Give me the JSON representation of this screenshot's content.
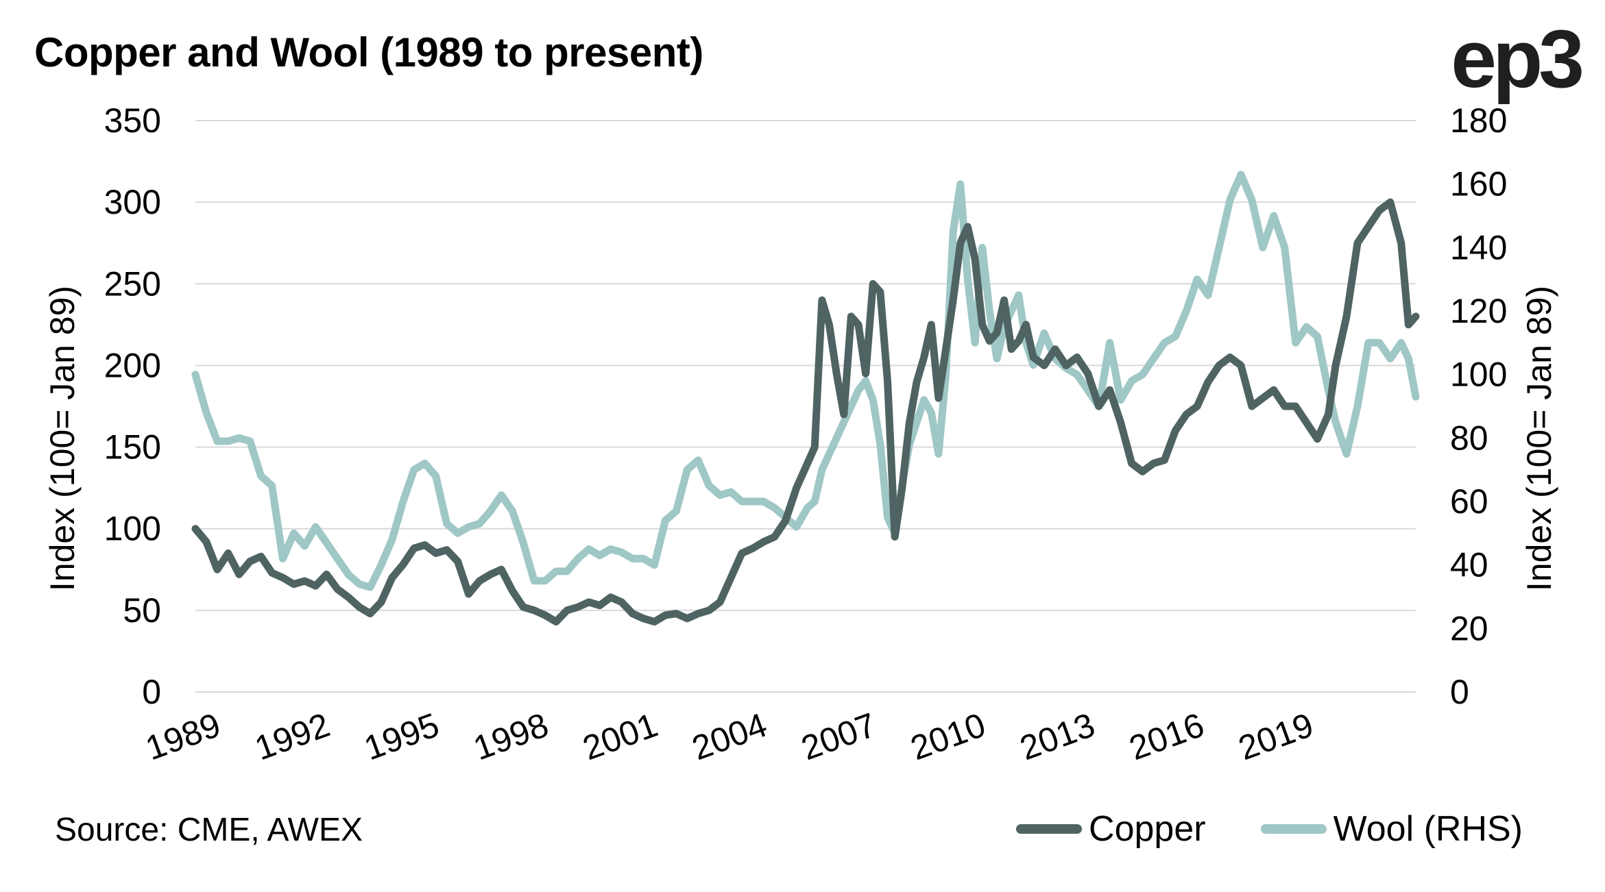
{
  "title": "Copper and Wool (1989 to present)",
  "logo": "ep3",
  "source": "Source: CME, AWEX",
  "colors": {
    "copper": "#4f6362",
    "wool": "#9ec7c5",
    "grid": "#d9d9d9"
  },
  "chart_data": {
    "type": "line",
    "title": "Copper and Wool (1989 to present)",
    "ylabel_left": "Index (100= Jan 89)",
    "ylabel_right": "Index (100= Jan 89)",
    "ylim_left": [
      0,
      350
    ],
    "ylim_right": [
      0,
      180
    ],
    "yticks_left": [
      "0",
      "50",
      "100",
      "150",
      "200",
      "250",
      "300",
      "350"
    ],
    "yticks_right": [
      "0",
      "20",
      "40",
      "60",
      "80",
      "100",
      "120",
      "140",
      "160",
      "180"
    ],
    "xlim": [
      1989,
      2022.5
    ],
    "xticks": [
      "1989",
      "1992",
      "1995",
      "1998",
      "2001",
      "2004",
      "2007",
      "2010",
      "2013",
      "2016",
      "2019"
    ],
    "grid": true,
    "legend": "bottom-right",
    "series": [
      {
        "name": "Copper",
        "axis": "left",
        "color": "#4f6362",
        "x": [
          1989.0,
          1989.3,
          1989.6,
          1989.9,
          1990.2,
          1990.5,
          1990.8,
          1991.1,
          1991.4,
          1991.7,
          1992.0,
          1992.3,
          1992.6,
          1992.9,
          1993.2,
          1993.5,
          1993.8,
          1994.1,
          1994.4,
          1994.7,
          1995.0,
          1995.3,
          1995.6,
          1995.9,
          1996.2,
          1996.5,
          1996.8,
          1997.1,
          1997.4,
          1997.7,
          1998.0,
          1998.3,
          1998.6,
          1998.9,
          1999.2,
          1999.5,
          1999.8,
          2000.1,
          2000.4,
          2000.7,
          2001.0,
          2001.3,
          2001.6,
          2001.9,
          2002.2,
          2002.5,
          2002.8,
          2003.1,
          2003.4,
          2003.7,
          2004.0,
          2004.3,
          2004.6,
          2004.9,
          2005.2,
          2005.5,
          2005.8,
          2006.0,
          2006.2,
          2006.4,
          2006.6,
          2006.8,
          2007.0,
          2007.2,
          2007.4,
          2007.6,
          2007.8,
          2008.0,
          2008.2,
          2008.4,
          2008.6,
          2008.8,
          2009.0,
          2009.2,
          2009.4,
          2009.6,
          2009.8,
          2010.0,
          2010.2,
          2010.4,
          2010.6,
          2010.8,
          2011.0,
          2011.2,
          2011.4,
          2011.6,
          2011.8,
          2012.0,
          2012.3,
          2012.6,
          2012.9,
          2013.2,
          2013.5,
          2013.8,
          2014.1,
          2014.4,
          2014.7,
          2015.0,
          2015.3,
          2015.6,
          2015.9,
          2016.2,
          2016.5,
          2016.8,
          2017.1,
          2017.4,
          2017.7,
          2018.0,
          2018.3,
          2018.6,
          2018.9,
          2019.2,
          2019.5,
          2019.8,
          2020.1,
          2020.3,
          2020.6,
          2020.9,
          2021.2,
          2021.5,
          2021.8,
          2022.1,
          2022.3,
          2022.5
        ],
        "values": [
          100,
          92,
          75,
          85,
          72,
          80,
          83,
          73,
          70,
          66,
          68,
          65,
          72,
          63,
          58,
          52,
          48,
          55,
          70,
          78,
          88,
          90,
          85,
          87,
          80,
          60,
          68,
          72,
          75,
          62,
          52,
          50,
          47,
          43,
          50,
          52,
          55,
          53,
          58,
          55,
          48,
          45,
          43,
          47,
          48,
          45,
          48,
          50,
          55,
          70,
          85,
          88,
          92,
          95,
          105,
          125,
          140,
          150,
          240,
          225,
          195,
          170,
          230,
          225,
          195,
          250,
          245,
          190,
          95,
          125,
          165,
          190,
          205,
          225,
          180,
          210,
          240,
          275,
          285,
          265,
          225,
          215,
          220,
          240,
          210,
          215,
          225,
          205,
          200,
          210,
          200,
          205,
          195,
          175,
          185,
          165,
          140,
          135,
          140,
          142,
          160,
          170,
          175,
          190,
          200,
          205,
          200,
          175,
          180,
          185,
          175,
          175,
          165,
          155,
          170,
          200,
          230,
          275,
          285,
          295,
          300,
          275,
          225,
          230
        ]
      },
      {
        "name": "Wool (RHS)",
        "axis": "right",
        "color": "#9ec7c5",
        "x": [
          1989.0,
          1989.3,
          1989.6,
          1989.9,
          1990.2,
          1990.5,
          1990.8,
          1991.1,
          1991.4,
          1991.7,
          1992.0,
          1992.3,
          1992.6,
          1992.9,
          1993.2,
          1993.5,
          1993.8,
          1994.1,
          1994.4,
          1994.7,
          1995.0,
          1995.3,
          1995.6,
          1995.9,
          1996.2,
          1996.5,
          1996.8,
          1997.1,
          1997.4,
          1997.7,
          1998.0,
          1998.3,
          1998.6,
          1998.9,
          1999.2,
          1999.5,
          1999.8,
          2000.1,
          2000.4,
          2000.7,
          2001.0,
          2001.3,
          2001.6,
          2001.9,
          2002.2,
          2002.5,
          2002.8,
          2003.1,
          2003.4,
          2003.7,
          2004.0,
          2004.3,
          2004.6,
          2004.9,
          2005.2,
          2005.5,
          2005.8,
          2006.0,
          2006.2,
          2006.4,
          2006.6,
          2006.8,
          2007.0,
          2007.2,
          2007.4,
          2007.6,
          2007.8,
          2008.0,
          2008.2,
          2008.4,
          2008.6,
          2008.8,
          2009.0,
          2009.2,
          2009.4,
          2009.6,
          2009.8,
          2010.0,
          2010.2,
          2010.4,
          2010.6,
          2010.8,
          2011.0,
          2011.2,
          2011.4,
          2011.6,
          2011.8,
          2012.0,
          2012.3,
          2012.6,
          2012.9,
          2013.2,
          2013.5,
          2013.8,
          2014.1,
          2014.4,
          2014.7,
          2015.0,
          2015.3,
          2015.6,
          2015.9,
          2016.2,
          2016.5,
          2016.8,
          2017.1,
          2017.4,
          2017.7,
          2018.0,
          2018.3,
          2018.6,
          2018.9,
          2019.2,
          2019.5,
          2019.8,
          2020.1,
          2020.3,
          2020.6,
          2020.9,
          2021.2,
          2021.5,
          2021.8,
          2022.1,
          2022.3,
          2022.5
        ],
        "values": [
          100,
          88,
          79,
          79,
          80,
          79,
          68,
          65,
          42,
          50,
          46,
          52,
          47,
          42,
          37,
          34,
          33,
          40,
          48,
          60,
          70,
          72,
          68,
          53,
          50,
          52,
          53,
          57,
          62,
          57,
          47,
          35,
          35,
          38,
          38,
          42,
          45,
          43,
          45,
          44,
          42,
          42,
          40,
          54,
          57,
          70,
          73,
          65,
          62,
          63,
          60,
          60,
          60,
          58,
          55,
          52,
          58,
          60,
          70,
          75,
          80,
          85,
          90,
          95,
          98,
          92,
          78,
          55,
          50,
          65,
          78,
          85,
          92,
          88,
          75,
          100,
          145,
          160,
          130,
          110,
          140,
          120,
          105,
          115,
          120,
          125,
          110,
          103,
          113,
          105,
          102,
          100,
          95,
          90,
          110,
          92,
          98,
          100,
          105,
          110,
          112,
          120,
          130,
          125,
          140,
          155,
          163,
          155,
          140,
          150,
          140,
          110,
          115,
          112,
          95,
          85,
          75,
          90,
          110,
          110,
          105,
          110,
          105,
          93
        ]
      }
    ]
  }
}
